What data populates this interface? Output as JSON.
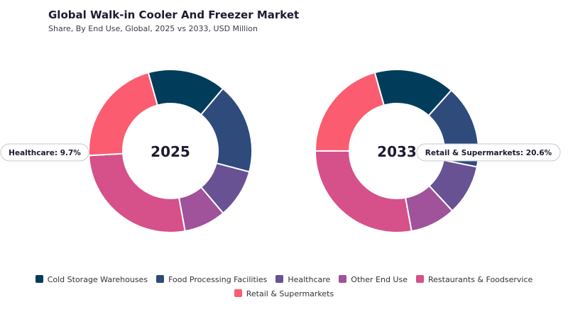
{
  "header": {
    "title": "Global Walk-in Cooler And Freezer Market",
    "subtitle": "Share, By End Use, Global, 2025 vs 2033, USD Million"
  },
  "chart_data": {
    "type": "pie",
    "variant": "donut",
    "title": "Global Walk-in Cooler And Freezer Market",
    "subtitle": "Share, By End Use, Global, 2025 vs 2033, USD Million",
    "legend_position": "bottom",
    "categories": [
      "Cold Storage Warehouses",
      "Food Processing Facilities",
      "Healthcare",
      "Other End Use",
      "Restaurants & Foodservice",
      "Retail & Supermarkets"
    ],
    "colors": [
      "#013d5a",
      "#2e4b7c",
      "#685293",
      "#a0529a",
      "#d6508a",
      "#fb5c6f"
    ],
    "charts": [
      {
        "center_label": "2025",
        "values": [
          15.5,
          18.0,
          9.7,
          8.3,
          27.0,
          21.5
        ],
        "callout": {
          "text": "Healthcare: 9.7%",
          "category_index": 2
        }
      },
      {
        "center_label": "2033",
        "values": [
          16.0,
          16.5,
          10.0,
          9.0,
          27.9,
          20.6
        ],
        "callout": {
          "text": "Retail & Supermarkets: 20.6%",
          "category_index": 5
        }
      }
    ]
  }
}
